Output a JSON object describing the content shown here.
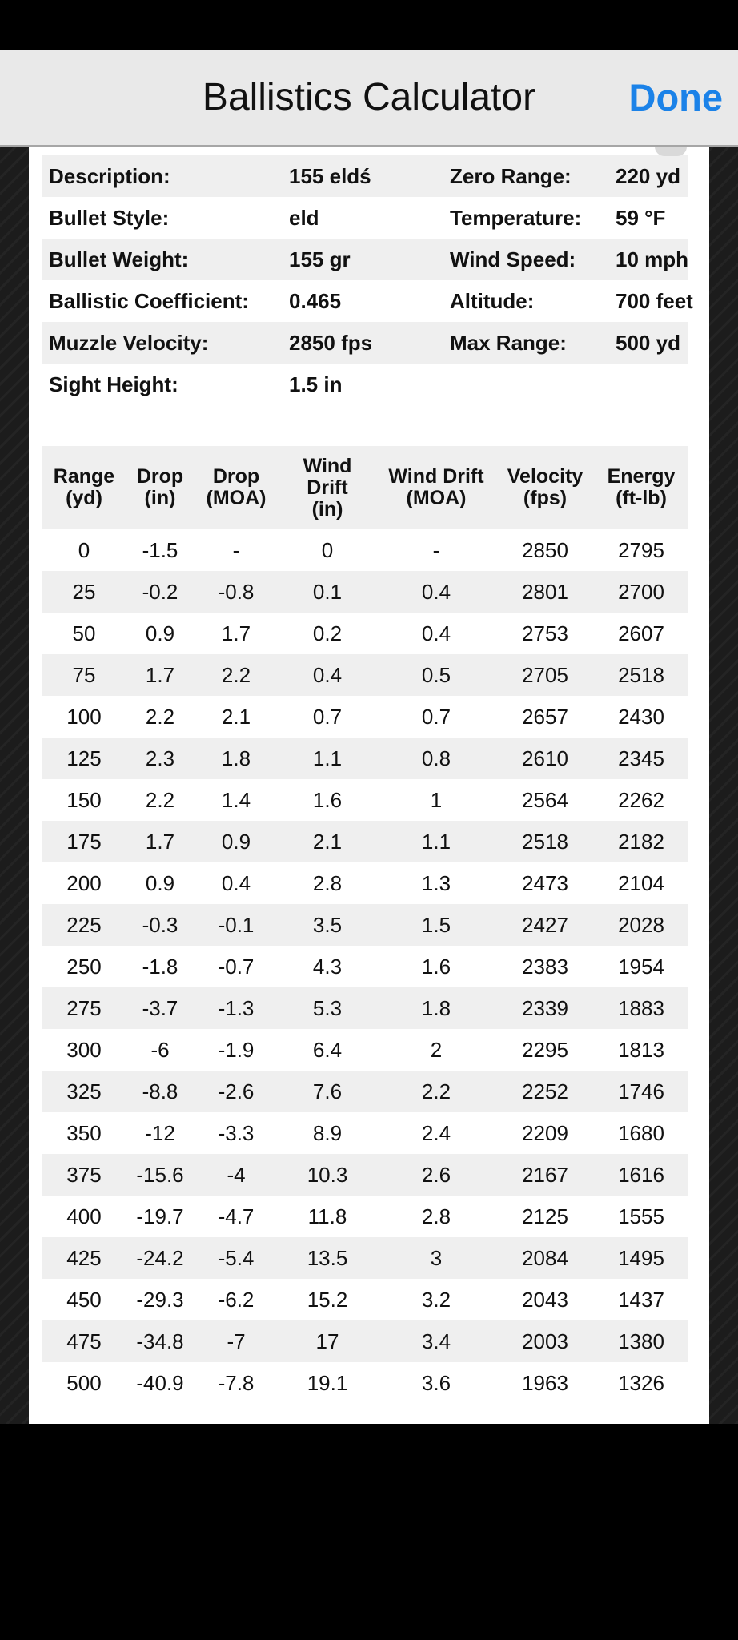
{
  "header": {
    "title": "Ballistics Calculator",
    "done_label": "Done"
  },
  "summary": [
    {
      "label1": "Description:",
      "value1": "155 eldś",
      "label2": "Zero Range:",
      "value2": "220 yd"
    },
    {
      "label1": "Bullet Style:",
      "value1": "eld",
      "label2": "Temperature:",
      "value2": "59 °F"
    },
    {
      "label1": "Bullet Weight:",
      "value1": "155 gr",
      "label2": "Wind Speed:",
      "value2": "10 mph"
    },
    {
      "label1": "Ballistic Coefficient:",
      "value1": "0.465",
      "label2": "Altitude:",
      "value2": "700 feet"
    },
    {
      "label1": "Muzzle Velocity:",
      "value1": "2850 fps",
      "label2": "Max Range:",
      "value2": "500 yd"
    },
    {
      "label1": "Sight Height:",
      "value1": "1.5 in",
      "label2": "",
      "value2": ""
    }
  ],
  "table": {
    "columns": [
      "Range\n(yd)",
      "Drop\n(in)",
      "Drop\n(MOA)",
      "Wind\nDrift\n(in)",
      "Wind Drift\n(MOA)",
      "Velocity\n(fps)",
      "Energy\n(ft-lb)"
    ],
    "rows": [
      [
        "0",
        "-1.5",
        "-",
        "0",
        "-",
        "2850",
        "2795"
      ],
      [
        "25",
        "-0.2",
        "-0.8",
        "0.1",
        "0.4",
        "2801",
        "2700"
      ],
      [
        "50",
        "0.9",
        "1.7",
        "0.2",
        "0.4",
        "2753",
        "2607"
      ],
      [
        "75",
        "1.7",
        "2.2",
        "0.4",
        "0.5",
        "2705",
        "2518"
      ],
      [
        "100",
        "2.2",
        "2.1",
        "0.7",
        "0.7",
        "2657",
        "2430"
      ],
      [
        "125",
        "2.3",
        "1.8",
        "1.1",
        "0.8",
        "2610",
        "2345"
      ],
      [
        "150",
        "2.2",
        "1.4",
        "1.6",
        "1",
        "2564",
        "2262"
      ],
      [
        "175",
        "1.7",
        "0.9",
        "2.1",
        "1.1",
        "2518",
        "2182"
      ],
      [
        "200",
        "0.9",
        "0.4",
        "2.8",
        "1.3",
        "2473",
        "2104"
      ],
      [
        "225",
        "-0.3",
        "-0.1",
        "3.5",
        "1.5",
        "2427",
        "2028"
      ],
      [
        "250",
        "-1.8",
        "-0.7",
        "4.3",
        "1.6",
        "2383",
        "1954"
      ],
      [
        "275",
        "-3.7",
        "-1.3",
        "5.3",
        "1.8",
        "2339",
        "1883"
      ],
      [
        "300",
        "-6",
        "-1.9",
        "6.4",
        "2",
        "2295",
        "1813"
      ],
      [
        "325",
        "-8.8",
        "-2.6",
        "7.6",
        "2.2",
        "2252",
        "1746"
      ],
      [
        "350",
        "-12",
        "-3.3",
        "8.9",
        "2.4",
        "2209",
        "1680"
      ],
      [
        "375",
        "-15.6",
        "-4",
        "10.3",
        "2.6",
        "2167",
        "1616"
      ],
      [
        "400",
        "-19.7",
        "-4.7",
        "11.8",
        "2.8",
        "2125",
        "1555"
      ],
      [
        "425",
        "-24.2",
        "-5.4",
        "13.5",
        "3",
        "2084",
        "1495"
      ],
      [
        "450",
        "-29.3",
        "-6.2",
        "15.2",
        "3.2",
        "2043",
        "1437"
      ],
      [
        "475",
        "-34.8",
        "-7",
        "17",
        "3.4",
        "2003",
        "1380"
      ],
      [
        "500",
        "-40.9",
        "-7.8",
        "19.1",
        "3.6",
        "1963",
        "1326"
      ]
    ]
  },
  "colors": {
    "accent": "#1b82e8",
    "header_bg": "#e9e9e9",
    "row_shade": "#efefef"
  }
}
